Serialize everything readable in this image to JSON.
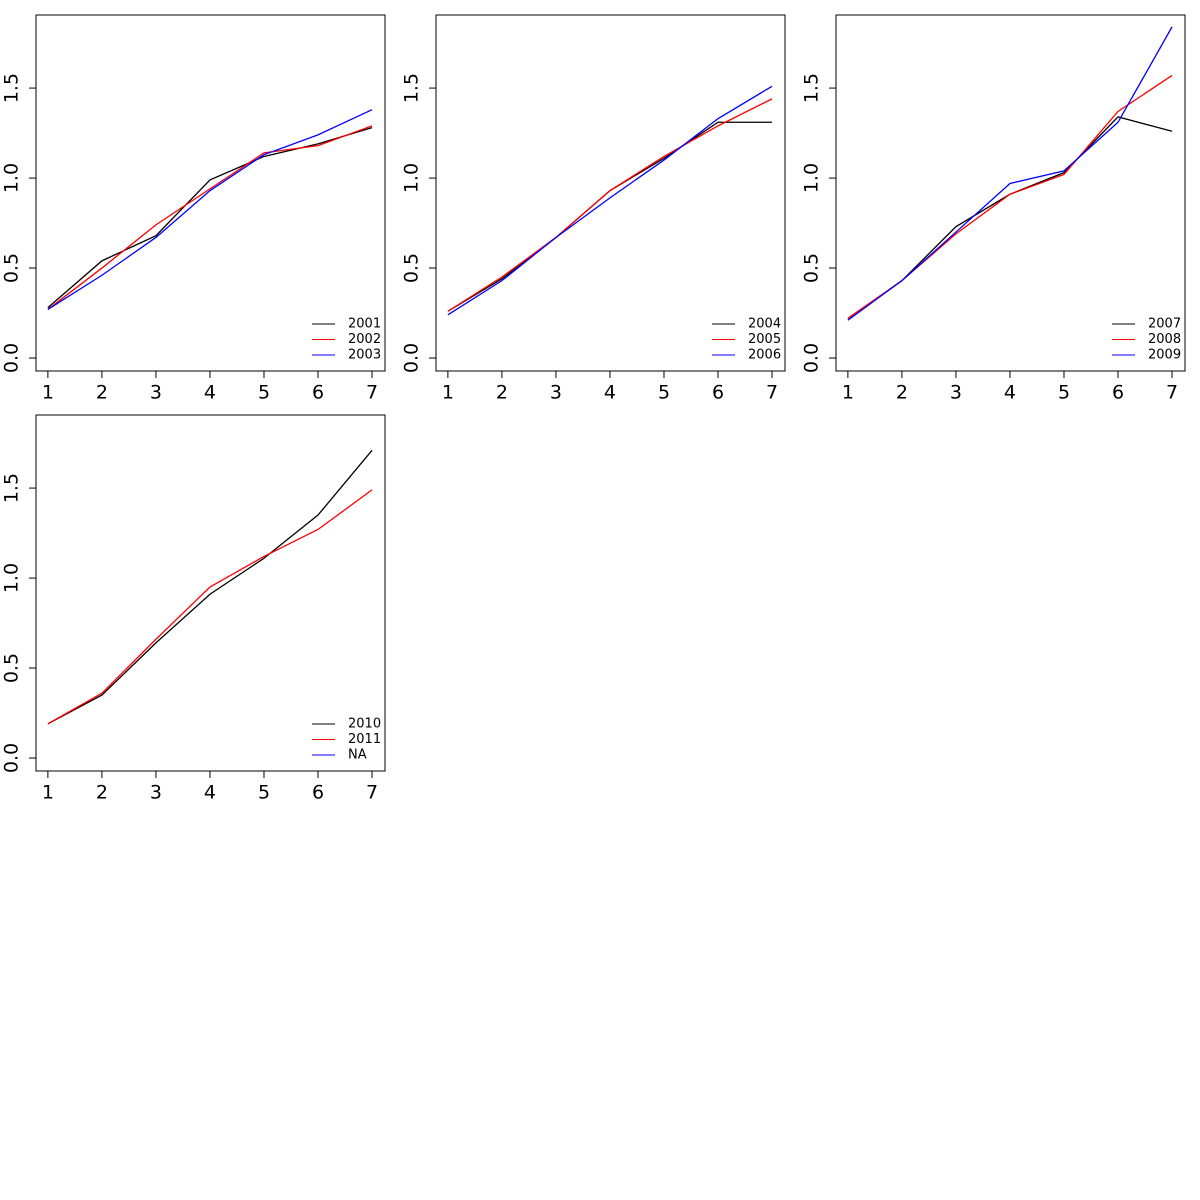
{
  "chart_data": [
    {
      "type": "line",
      "x": [
        1,
        2,
        3,
        4,
        5,
        6,
        7
      ],
      "xlim": [
        0.78,
        7.24
      ],
      "xticks": [
        1,
        2,
        3,
        4,
        5,
        6,
        7
      ],
      "ylim": [
        -0.072,
        1.906
      ],
      "yticks": [
        {
          "value": 0,
          "label": "0.0"
        },
        0.5,
        {
          "value": 1,
          "label": "1.0"
        },
        1.5
      ],
      "legend": "bottomright",
      "series": [
        {
          "name": "2001",
          "color": "#000000",
          "values": [
            0.28,
            0.54,
            0.68,
            0.99,
            1.12,
            1.19,
            1.28
          ]
        },
        {
          "name": "2002",
          "color": "#ff0000",
          "values": [
            0.27,
            0.5,
            0.74,
            0.94,
            1.14,
            1.18,
            1.29
          ]
        },
        {
          "name": "2003",
          "color": "#0000ff",
          "values": [
            0.27,
            0.46,
            0.67,
            0.93,
            1.13,
            1.24,
            1.38
          ]
        }
      ]
    },
    {
      "type": "line",
      "x": [
        1,
        2,
        3,
        4,
        5,
        6,
        7
      ],
      "xlim": [
        0.78,
        7.24
      ],
      "xticks": [
        1,
        2,
        3,
        4,
        5,
        6,
        7
      ],
      "ylim": [
        -0.072,
        1.906
      ],
      "yticks": [
        {
          "value": 0,
          "label": "0.0"
        },
        0.5,
        {
          "value": 1,
          "label": "1.0"
        },
        1.5
      ],
      "legend": "bottomright",
      "series": [
        {
          "name": "2004",
          "color": "#000000",
          "values": [
            0.26,
            0.44,
            0.67,
            0.93,
            1.11,
            1.31,
            1.31
          ]
        },
        {
          "name": "2005",
          "color": "#ff0000",
          "values": [
            0.26,
            0.45,
            0.67,
            0.93,
            1.12,
            1.29,
            1.44
          ]
        },
        {
          "name": "2006",
          "color": "#0000ff",
          "values": [
            0.24,
            0.43,
            0.67,
            0.89,
            1.1,
            1.33,
            1.51
          ]
        }
      ]
    },
    {
      "type": "line",
      "x": [
        1,
        2,
        3,
        4,
        5,
        6,
        7
      ],
      "xlim": [
        0.78,
        7.24
      ],
      "xticks": [
        1,
        2,
        3,
        4,
        5,
        6,
        7
      ],
      "ylim": [
        -0.072,
        1.906
      ],
      "yticks": [
        {
          "value": 0,
          "label": "0.0"
        },
        0.5,
        {
          "value": 1,
          "label": "1.0"
        },
        1.5
      ],
      "legend": "bottomright",
      "series": [
        {
          "name": "2007",
          "color": "#000000",
          "values": [
            0.22,
            0.43,
            0.73,
            0.91,
            1.03,
            1.34,
            1.26
          ]
        },
        {
          "name": "2008",
          "color": "#ff0000",
          "values": [
            0.22,
            0.43,
            0.69,
            0.91,
            1.02,
            1.37,
            1.57
          ]
        },
        {
          "name": "2009",
          "color": "#0000ff",
          "values": [
            0.21,
            0.43,
            0.7,
            0.97,
            1.04,
            1.31,
            1.84
          ]
        }
      ]
    },
    {
      "type": "line",
      "x": [
        1,
        2,
        3,
        4,
        5,
        6,
        7
      ],
      "xlim": [
        0.78,
        7.24
      ],
      "xticks": [
        1,
        2,
        3,
        4,
        5,
        6,
        7
      ],
      "ylim": [
        -0.072,
        1.906
      ],
      "yticks": [
        {
          "value": 0,
          "label": "0.0"
        },
        0.5,
        {
          "value": 1,
          "label": "1.0"
        },
        1.5
      ],
      "legend": "bottomright",
      "series": [
        {
          "name": "2010",
          "color": "#000000",
          "values": [
            0.19,
            0.35,
            0.64,
            0.91,
            1.11,
            1.35,
            1.71
          ]
        },
        {
          "name": "2011",
          "color": "#ff0000",
          "values": [
            0.19,
            0.36,
            0.66,
            0.95,
            1.12,
            1.27,
            1.49
          ]
        },
        {
          "name": "NA",
          "color": "#0000ff",
          "values": [
            null,
            null,
            null,
            null,
            null,
            null,
            null
          ]
        }
      ]
    }
  ]
}
